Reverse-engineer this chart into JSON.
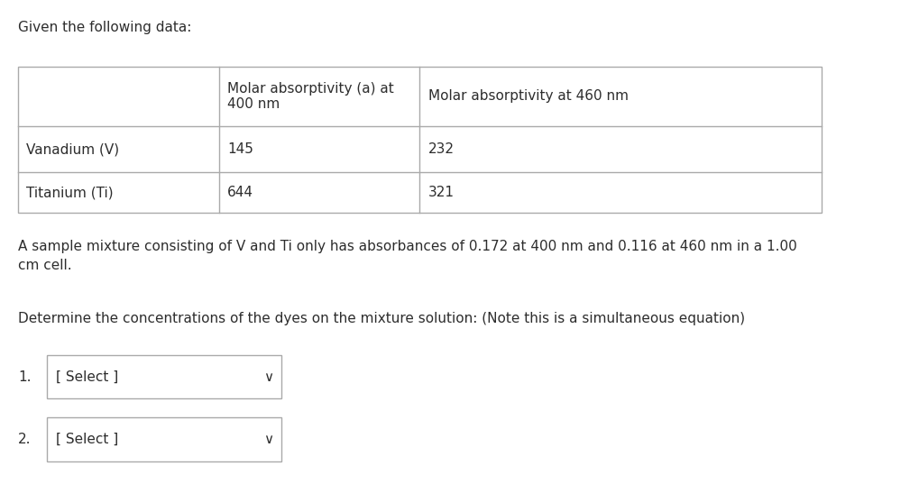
{
  "title": "Given the following data:",
  "col_headers": [
    "",
    "Molar absorptivity (a) at\n400 nm",
    "Molar absorptivity at 460 nm"
  ],
  "rows": [
    [
      "Vanadium (V)",
      "145",
      "232"
    ],
    [
      "Titanium (Ti)",
      "644",
      "321"
    ]
  ],
  "paragraph1": "A sample mixture consisting of V and Ti only has absorbances of 0.172 at 400 nm and 0.116 at 460 nm in a 1.00\ncm cell.",
  "paragraph2": "Determine the concentrations of the dyes on the mixture solution: (Note this is a simultaneous equation)",
  "dropdown_label1": "1.",
  "dropdown_label2": "2.",
  "dropdown_text": "[ Select ]",
  "bg_color": "#ffffff",
  "text_color": "#2d2d2d",
  "table_border_color": "#aaaaaa",
  "dropdown_border_color": "#aaaaaa",
  "font_size": 11,
  "col_bounds": [
    0.02,
    0.26,
    0.5,
    0.98
  ],
  "row_bounds": [
    0.865,
    0.74,
    0.645,
    0.56
  ]
}
